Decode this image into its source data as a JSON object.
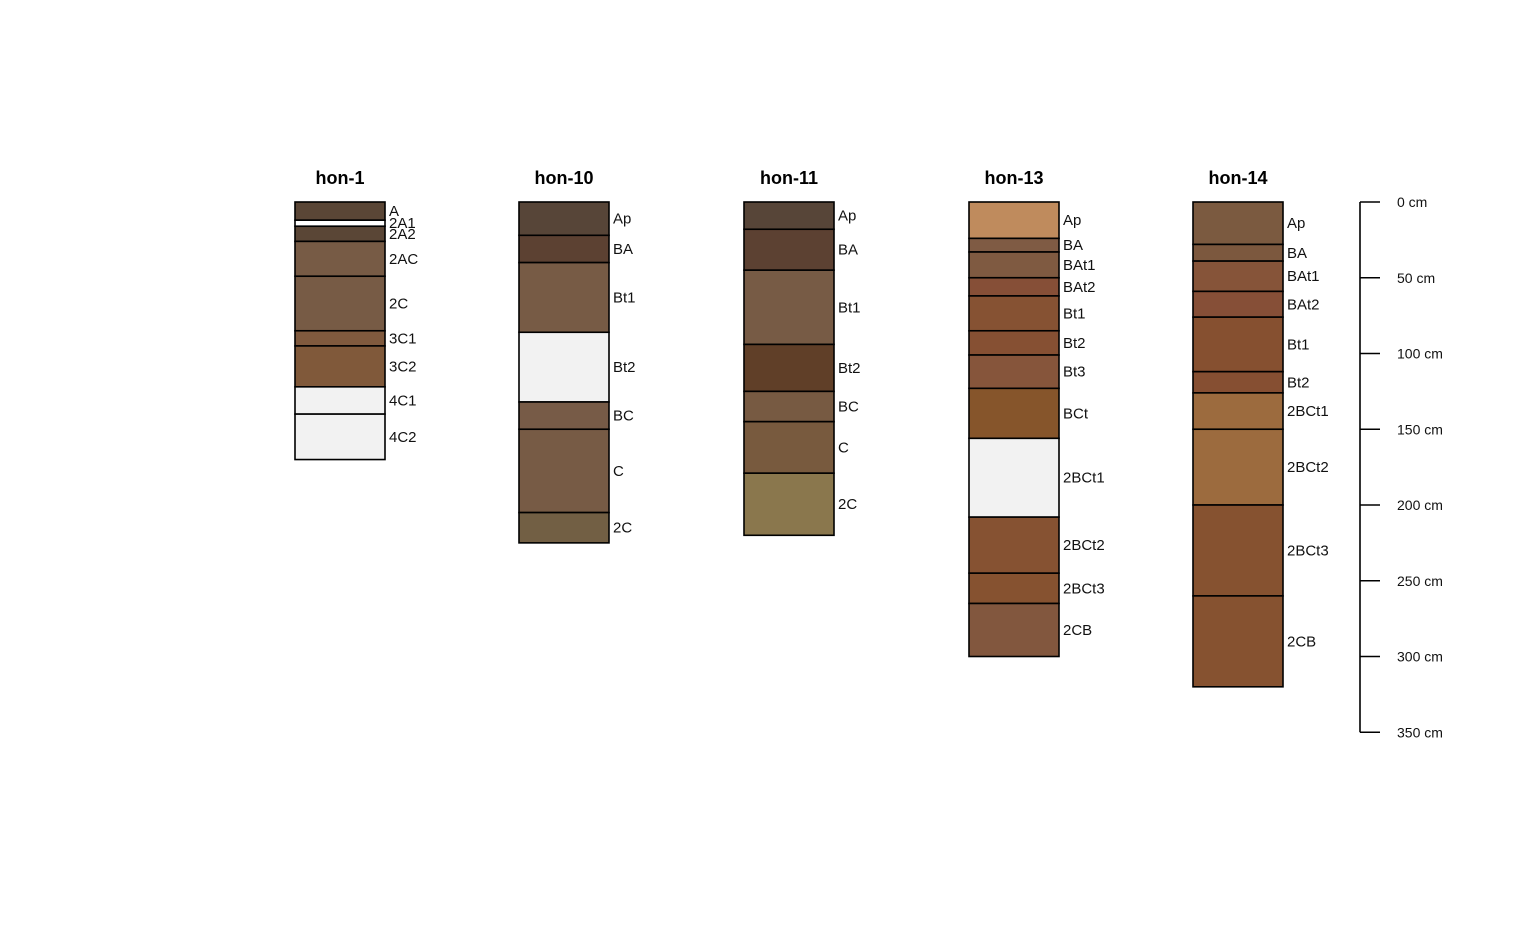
{
  "chart_data": {
    "type": "soil-profile-sketch",
    "depth_axis": {
      "unit": "cm",
      "ticks": [
        0,
        50,
        100,
        150,
        200,
        250,
        300,
        350
      ],
      "tick_labels": [
        "0 cm",
        "50 cm",
        "100 cm",
        "150 cm",
        "200 cm",
        "250 cm",
        "300 cm",
        "350 cm"
      ],
      "range": [
        0,
        350
      ]
    },
    "profiles": [
      {
        "id": "hon-1",
        "horizons": [
          {
            "name": "A",
            "top": 0,
            "bottom": 12,
            "color": "#5a4636"
          },
          {
            "name": "2A1",
            "top": 12,
            "bottom": 16,
            "color": "#ffffff"
          },
          {
            "name": "2A2",
            "top": 16,
            "bottom": 26,
            "color": "#5a4636"
          },
          {
            "name": "2AC",
            "top": 26,
            "bottom": 49,
            "color": "#775b45"
          },
          {
            "name": "2C",
            "top": 49,
            "bottom": 85,
            "color": "#775b45"
          },
          {
            "name": "3C1",
            "top": 85,
            "bottom": 95,
            "color": "#805a3e"
          },
          {
            "name": "3C2",
            "top": 95,
            "bottom": 122,
            "color": "#80593a"
          },
          {
            "name": "4C1",
            "top": 122,
            "bottom": 140,
            "color": "#f2f2f2"
          },
          {
            "name": "4C2",
            "top": 140,
            "bottom": 170,
            "color": "#f2f2f2"
          }
        ]
      },
      {
        "id": "hon-10",
        "horizons": [
          {
            "name": "Ap",
            "top": 0,
            "bottom": 22,
            "color": "#574538"
          },
          {
            "name": "BA",
            "top": 22,
            "bottom": 40,
            "color": "#5c4132"
          },
          {
            "name": "Bt1",
            "top": 40,
            "bottom": 86,
            "color": "#775b45"
          },
          {
            "name": "Bt2",
            "top": 86,
            "bottom": 132,
            "color": "#f2f2f2"
          },
          {
            "name": "BC",
            "top": 132,
            "bottom": 150,
            "color": "#775b47"
          },
          {
            "name": "C",
            "top": 150,
            "bottom": 205,
            "color": "#775b45"
          },
          {
            "name": "2C",
            "top": 205,
            "bottom": 225,
            "color": "#725f44"
          }
        ]
      },
      {
        "id": "hon-11",
        "horizons": [
          {
            "name": "Ap",
            "top": 0,
            "bottom": 18,
            "color": "#574538"
          },
          {
            "name": "BA",
            "top": 18,
            "bottom": 45,
            "color": "#5c4132"
          },
          {
            "name": "Bt1",
            "top": 45,
            "bottom": 94,
            "color": "#775b45"
          },
          {
            "name": "Bt2",
            "top": 94,
            "bottom": 125,
            "color": "#603f28"
          },
          {
            "name": "BC",
            "top": 125,
            "bottom": 145,
            "color": "#775a42"
          },
          {
            "name": "C",
            "top": 145,
            "bottom": 179,
            "color": "#785a3e"
          },
          {
            "name": "2C",
            "top": 179,
            "bottom": 220,
            "color": "#8a774d"
          }
        ]
      },
      {
        "id": "hon-13",
        "horizons": [
          {
            "name": "Ap",
            "top": 0,
            "bottom": 24,
            "color": "#bf8b5d"
          },
          {
            "name": "BA",
            "top": 24,
            "bottom": 33,
            "color": "#7f5b44"
          },
          {
            "name": "BAt1",
            "top": 33,
            "bottom": 50,
            "color": "#7f5a41"
          },
          {
            "name": "BAt2",
            "top": 50,
            "bottom": 62,
            "color": "#864f37"
          },
          {
            "name": "Bt1",
            "top": 62,
            "bottom": 85,
            "color": "#865233"
          },
          {
            "name": "Bt2",
            "top": 85,
            "bottom": 101,
            "color": "#865033"
          },
          {
            "name": "Bt3",
            "top": 101,
            "bottom": 123,
            "color": "#86553b"
          },
          {
            "name": "BCt",
            "top": 123,
            "bottom": 156,
            "color": "#86552b"
          },
          {
            "name": "2BCt1",
            "top": 156,
            "bottom": 208,
            "color": "#f2f2f2"
          },
          {
            "name": "2BCt2",
            "top": 208,
            "bottom": 245,
            "color": "#865232"
          },
          {
            "name": "2BCt3",
            "top": 245,
            "bottom": 265,
            "color": "#865230"
          },
          {
            "name": "2CB",
            "top": 265,
            "bottom": 300,
            "color": "#82573e"
          }
        ]
      },
      {
        "id": "hon-14",
        "horizons": [
          {
            "name": "Ap",
            "top": 0,
            "bottom": 28,
            "color": "#7b5a40"
          },
          {
            "name": "BA",
            "top": 28,
            "bottom": 39,
            "color": "#7c583e"
          },
          {
            "name": "BAt1",
            "top": 39,
            "bottom": 59,
            "color": "#865439"
          },
          {
            "name": "BAt2",
            "top": 59,
            "bottom": 76,
            "color": "#864f37"
          },
          {
            "name": "Bt1",
            "top": 76,
            "bottom": 112,
            "color": "#865030"
          },
          {
            "name": "Bt2",
            "top": 112,
            "bottom": 126,
            "color": "#864f32"
          },
          {
            "name": "2BCt1",
            "top": 126,
            "bottom": 150,
            "color": "#9c6b3e"
          },
          {
            "name": "2BCt2",
            "top": 150,
            "bottom": 200,
            "color": "#9c6b3e"
          },
          {
            "name": "2BCt3",
            "top": 200,
            "bottom": 260,
            "color": "#865230"
          },
          {
            "name": "2CB",
            "top": 260,
            "bottom": 320,
            "color": "#865230"
          }
        ]
      }
    ]
  }
}
